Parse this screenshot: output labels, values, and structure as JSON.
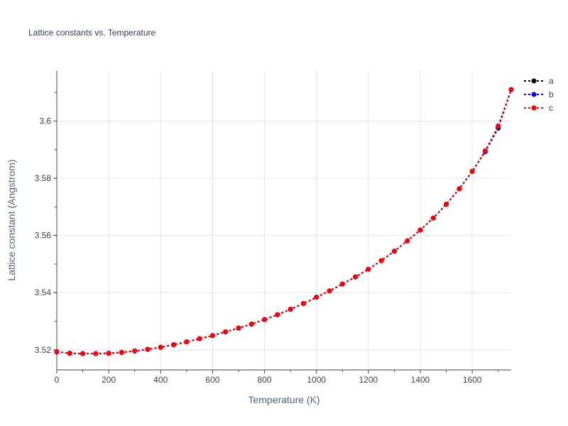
{
  "chart_data": {
    "type": "line",
    "title": "Lattice constants vs. Temperature",
    "xlabel": "Temperature (K)",
    "ylabel": "Lattice constant (Angstrom)",
    "xlim": [
      0,
      1750
    ],
    "ylim": [
      3.513,
      3.6175
    ],
    "xticks": [
      0,
      200,
      400,
      600,
      800,
      1000,
      1200,
      1400,
      1600
    ],
    "xtick_labels": [
      "0",
      "200",
      "400",
      "600",
      "800",
      "1000",
      "1200",
      "1400",
      "1600"
    ],
    "yticks": [
      3.52,
      3.54,
      3.56,
      3.58,
      3.6
    ],
    "ytick_labels": [
      "3.52",
      "3.54",
      "3.56",
      "3.58",
      "3.6"
    ],
    "grid": true,
    "legend_position": "top-right",
    "x": [
      0,
      50,
      100,
      150,
      200,
      250,
      300,
      350,
      400,
      450,
      500,
      550,
      600,
      650,
      700,
      750,
      800,
      850,
      900,
      950,
      1000,
      1050,
      1100,
      1150,
      1200,
      1250,
      1300,
      1350,
      1400,
      1450,
      1500,
      1550,
      1600,
      1650,
      1700,
      1750
    ],
    "series": [
      {
        "name": "a",
        "color": "#000000",
        "values": [
          3.5193,
          3.5188,
          3.5187,
          3.5187,
          3.5188,
          3.5191,
          3.5196,
          3.5202,
          3.5209,
          3.5218,
          3.5228,
          3.5239,
          3.525,
          3.5263,
          3.5276,
          3.529,
          3.5306,
          3.5323,
          3.5342,
          3.5362,
          3.5384,
          3.5406,
          3.543,
          3.5455,
          3.5482,
          3.5512,
          3.5545,
          3.5581,
          3.5619,
          3.5661,
          3.5709,
          3.5763,
          3.5824,
          3.5893,
          3.5975,
          3.611
        ]
      },
      {
        "name": "b",
        "color": "#0000ff",
        "values": [
          3.5193,
          3.5188,
          3.5187,
          3.5187,
          3.5188,
          3.5191,
          3.5196,
          3.5202,
          3.5209,
          3.5218,
          3.5228,
          3.5239,
          3.525,
          3.5263,
          3.5276,
          3.529,
          3.5306,
          3.5323,
          3.5342,
          3.5362,
          3.5384,
          3.5406,
          3.543,
          3.5455,
          3.5482,
          3.5512,
          3.5545,
          3.5581,
          3.5619,
          3.5661,
          3.5709,
          3.5763,
          3.5824,
          3.5893,
          3.5978,
          3.611
        ]
      },
      {
        "name": "c",
        "color": "#ff0000",
        "values": [
          3.5193,
          3.5188,
          3.5187,
          3.5187,
          3.5188,
          3.5191,
          3.5196,
          3.5202,
          3.5209,
          3.5218,
          3.5228,
          3.5239,
          3.525,
          3.5263,
          3.5276,
          3.529,
          3.5306,
          3.5323,
          3.5342,
          3.5362,
          3.5384,
          3.5406,
          3.543,
          3.5455,
          3.5482,
          3.5512,
          3.5545,
          3.5581,
          3.5619,
          3.5661,
          3.5709,
          3.5763,
          3.5824,
          3.5896,
          3.5983,
          3.611
        ]
      }
    ]
  }
}
